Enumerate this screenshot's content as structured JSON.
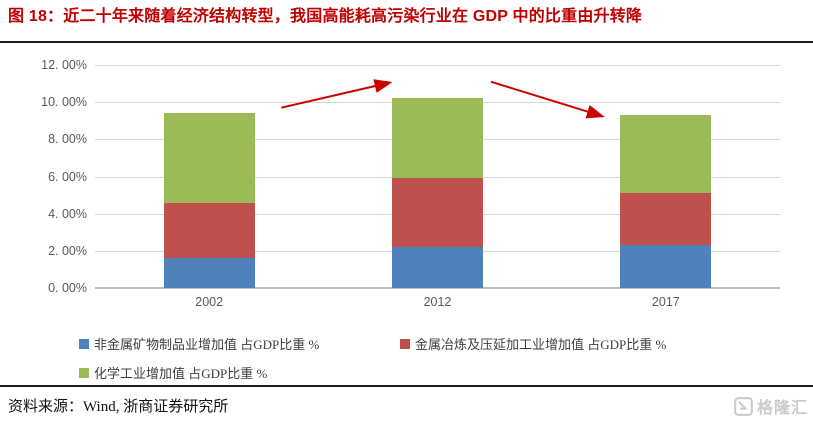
{
  "header": {
    "title": "图 18：近二十年来随着经济结构转型，我国高能耗高污染行业在 GDP 中的比重由升转降",
    "title_color": "#c00000"
  },
  "footer": {
    "source_label": "资料来源：Wind, 浙商证券研究所",
    "watermark_text": "格隆汇",
    "watermark_icon": "gelonghui-logo",
    "watermark_color": "#c9ccce"
  },
  "chart_data": {
    "type": "bar",
    "stacked": true,
    "categories": [
      "2002",
      "2012",
      "2017"
    ],
    "series": [
      {
        "name": "非金属矿物制品业增加值 占GDP比重 %",
        "color": "#4f81bd",
        "values": [
          1.6,
          2.2,
          2.3
        ]
      },
      {
        "name": "金属冶炼及压延加工业增加值 占GDP比重 %",
        "color": "#c0504d",
        "values": [
          3.0,
          3.7,
          2.8
        ]
      },
      {
        "name": "化学工业增加值 占GDP比重 %",
        "color": "#9bbb59",
        "values": [
          4.8,
          4.3,
          4.2
        ]
      }
    ],
    "stack_totals": [
      9.4,
      10.2,
      9.3
    ],
    "ylim": [
      0,
      12
    ],
    "ytick_values": [
      0,
      2,
      4,
      6,
      8,
      10,
      12
    ],
    "ytick_labels": [
      "0. 00%",
      "2. 00%",
      "4. 00%",
      "6. 00%",
      "8. 00%",
      "10. 00%",
      "12. 00%"
    ],
    "grid": true,
    "legend_position": "bottom-left",
    "axis_text_color": "#595959",
    "gridline_color": "#d9d9d9",
    "axis_line_color": "#bfbfbf",
    "annotations": [
      {
        "id": "rise-arrow",
        "type": "arrow",
        "color": "#cc0000",
        "x1_frac": 0.272,
        "y1_value": 9.7,
        "x2_frac": 0.43,
        "y2_value": 11.05
      },
      {
        "id": "fall-arrow",
        "type": "arrow",
        "color": "#cc0000",
        "x1_frac": 0.578,
        "y1_value": 11.1,
        "x2_frac": 0.74,
        "y2_value": 9.25
      }
    ]
  }
}
